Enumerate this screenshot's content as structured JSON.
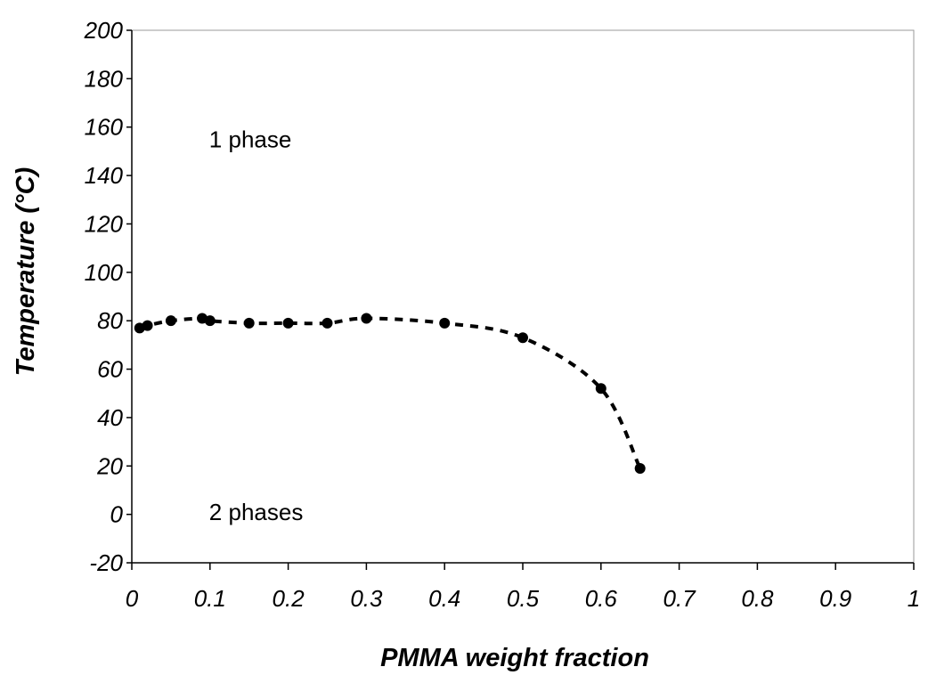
{
  "chart_data": {
    "type": "scatter",
    "title": "",
    "xlabel": "PMMA weight fraction",
    "ylabel": "Temperature (°C)",
    "xlim": [
      0,
      1
    ],
    "ylim": [
      -20,
      200
    ],
    "x_ticks": [
      "0",
      "0.1",
      "0.2",
      "0.3",
      "0.4",
      "0.5",
      "0.6",
      "0.7",
      "0.8",
      "0.9",
      "1"
    ],
    "y_ticks": [
      "-20",
      "0",
      "20",
      "40",
      "60",
      "80",
      "100",
      "120",
      "140",
      "160",
      "180",
      "200"
    ],
    "grid": false,
    "legend": "none",
    "series": [
      {
        "x": [
          0.01,
          0.02,
          0.05,
          0.09,
          0.1,
          0.15,
          0.2,
          0.25,
          0.3,
          0.4,
          0.5,
          0.6,
          0.65
        ],
        "y": [
          77,
          78,
          80,
          81,
          80,
          79,
          79,
          79,
          81,
          79,
          73,
          52,
          19
        ],
        "color": "#000000",
        "marker": "circle",
        "trend_line": "dashed"
      }
    ],
    "annotations": [
      {
        "text": "1 phase",
        "x": 0.1,
        "y": 155
      },
      {
        "text": "2 phases",
        "x": 0.1,
        "y": 1
      }
    ]
  }
}
